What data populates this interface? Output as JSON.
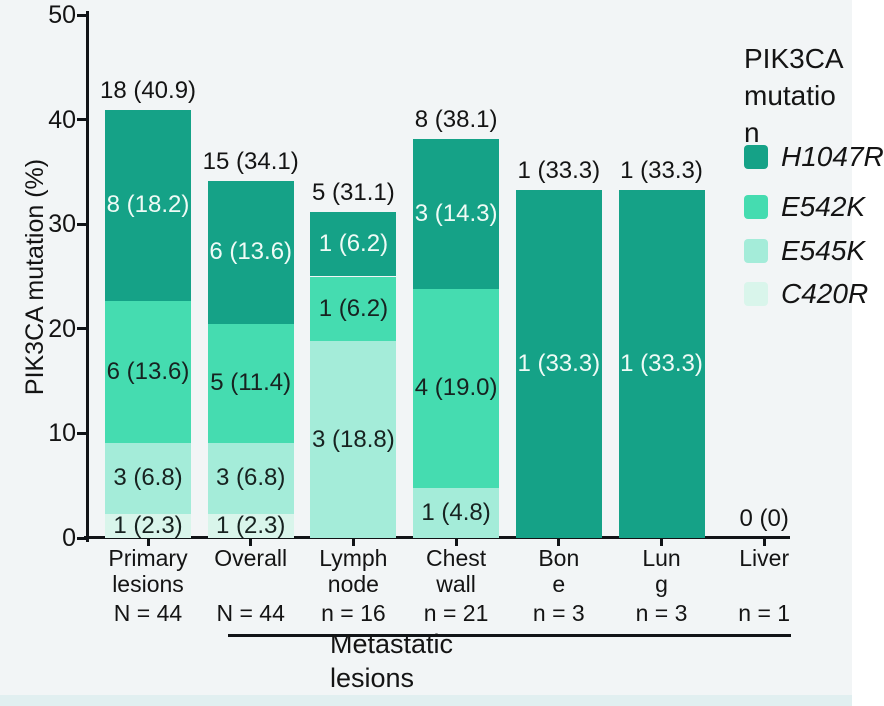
{
  "figure": {
    "background": "#f2f5f6",
    "axis_color": "#111417",
    "bottom_strip_color": "#e1eff0"
  },
  "legend": {
    "title": "PIK3CA mutation",
    "title_lines": [
      "PIK3CA",
      "mutatio",
      "n"
    ],
    "items": [
      {
        "label": "H1047R",
        "color": "#15a287"
      },
      {
        "label": "E542K",
        "color": "#45dcb0"
      },
      {
        "label": "E545K",
        "color": "#a4ecd9"
      },
      {
        "label": "C420R",
        "color": "#d9f5eb"
      }
    ]
  },
  "chart_data": {
    "type": "stacked_bar",
    "title": "",
    "ylabel": "PIK3CA mutation (%)",
    "xlabel": "",
    "ylim": [
      0,
      50
    ],
    "yticks": [
      0,
      10,
      20,
      30,
      40,
      50
    ],
    "grid": false,
    "legend_position": "right",
    "series_order_bottom_to_top": [
      "C420R",
      "E545K",
      "E542K",
      "H1047R"
    ],
    "categories": [
      {
        "name": "Primary lesions",
        "label_lines": [
          "Primary",
          "lesions"
        ],
        "sublabel": "N = 44"
      },
      {
        "name": "Overall",
        "label_lines": [
          "Overall"
        ],
        "sublabel": "N = 44"
      },
      {
        "name": "Lymph node",
        "label_lines": [
          "Lymph",
          "node"
        ],
        "sublabel": "n = 16"
      },
      {
        "name": "Chest wall",
        "label_lines": [
          "Chest",
          "wall"
        ],
        "sublabel": "n = 21"
      },
      {
        "name": "Bone",
        "label_lines": [
          "Bon",
          "e"
        ],
        "sublabel": "n = 3"
      },
      {
        "name": "Lung",
        "label_lines": [
          "Lun",
          "g"
        ],
        "sublabel": "n = 3"
      },
      {
        "name": "Liver",
        "label_lines": [
          "Liver"
        ],
        "sublabel": "n = 1"
      }
    ],
    "series": [
      {
        "name": "H1047R",
        "counts": [
          8,
          6,
          1,
          3,
          1,
          1,
          0
        ],
        "pcts": [
          18.2,
          13.6,
          6.2,
          14.3,
          33.3,
          33.3,
          0
        ]
      },
      {
        "name": "E542K",
        "counts": [
          6,
          5,
          1,
          4,
          0,
          0,
          0
        ],
        "pcts": [
          13.6,
          11.4,
          6.2,
          19.0,
          0,
          0,
          0
        ]
      },
      {
        "name": "E545K",
        "counts": [
          3,
          3,
          3,
          1,
          0,
          0,
          0
        ],
        "pcts": [
          6.8,
          6.8,
          18.8,
          4.8,
          0,
          0,
          0
        ]
      },
      {
        "name": "C420R",
        "counts": [
          1,
          1,
          0,
          0,
          0,
          0,
          0
        ],
        "pcts": [
          2.3,
          2.3,
          0,
          0,
          0,
          0,
          0
        ]
      }
    ],
    "bars": [
      {
        "total_label": "18 (40.9)",
        "segments": [
          {
            "series": "C420R",
            "count": 1,
            "pct": 2.3,
            "label": "1 (2.3)"
          },
          {
            "series": "E545K",
            "count": 3,
            "pct": 6.8,
            "label": "3 (6.8)"
          },
          {
            "series": "E542K",
            "count": 6,
            "pct": 13.6,
            "label": "6 (13.6)"
          },
          {
            "series": "H1047R",
            "count": 8,
            "pct": 18.2,
            "label": "8 (18.2)"
          }
        ]
      },
      {
        "total_label": "15 (34.1)",
        "segments": [
          {
            "series": "C420R",
            "count": 1,
            "pct": 2.3,
            "label": "1 (2.3)"
          },
          {
            "series": "E545K",
            "count": 3,
            "pct": 6.8,
            "label": "3 (6.8)"
          },
          {
            "series": "E542K",
            "count": 5,
            "pct": 11.4,
            "label": "5 (11.4)"
          },
          {
            "series": "H1047R",
            "count": 6,
            "pct": 13.6,
            "label": "6 (13.6)"
          }
        ]
      },
      {
        "total_label": "5 (31.1)",
        "segments": [
          {
            "series": "E545K",
            "count": 3,
            "pct": 18.8,
            "label": "3 (18.8)"
          },
          {
            "series": "E542K",
            "count": 1,
            "pct": 6.2,
            "label": "1 (6.2)"
          },
          {
            "series": "H1047R",
            "count": 1,
            "pct": 6.2,
            "label": "1 (6.2)"
          }
        ]
      },
      {
        "total_label": "8 (38.1)",
        "segments": [
          {
            "series": "E545K",
            "count": 1,
            "pct": 4.8,
            "label": "1 (4.8)"
          },
          {
            "series": "E542K",
            "count": 4,
            "pct": 19.0,
            "label": "4 (19.0)"
          },
          {
            "series": "H1047R",
            "count": 3,
            "pct": 14.3,
            "label": "3 (14.3)"
          }
        ]
      },
      {
        "total_label": "1 (33.3)",
        "segments": [
          {
            "series": "H1047R",
            "count": 1,
            "pct": 33.3,
            "label": "1 (33.3)"
          }
        ]
      },
      {
        "total_label": "1 (33.3)",
        "segments": [
          {
            "series": "H1047R",
            "count": 1,
            "pct": 33.3,
            "label": "1 (33.3)"
          }
        ]
      },
      {
        "total_label": "0 (0)",
        "segments": []
      }
    ],
    "group_annotation": {
      "label": "Metastatic lesions",
      "lines": [
        "Metastatic",
        "lesions"
      ],
      "covers": [
        "Overall",
        "Lymph node",
        "Chest wall",
        "Bone",
        "Lung",
        "Liver"
      ]
    }
  }
}
